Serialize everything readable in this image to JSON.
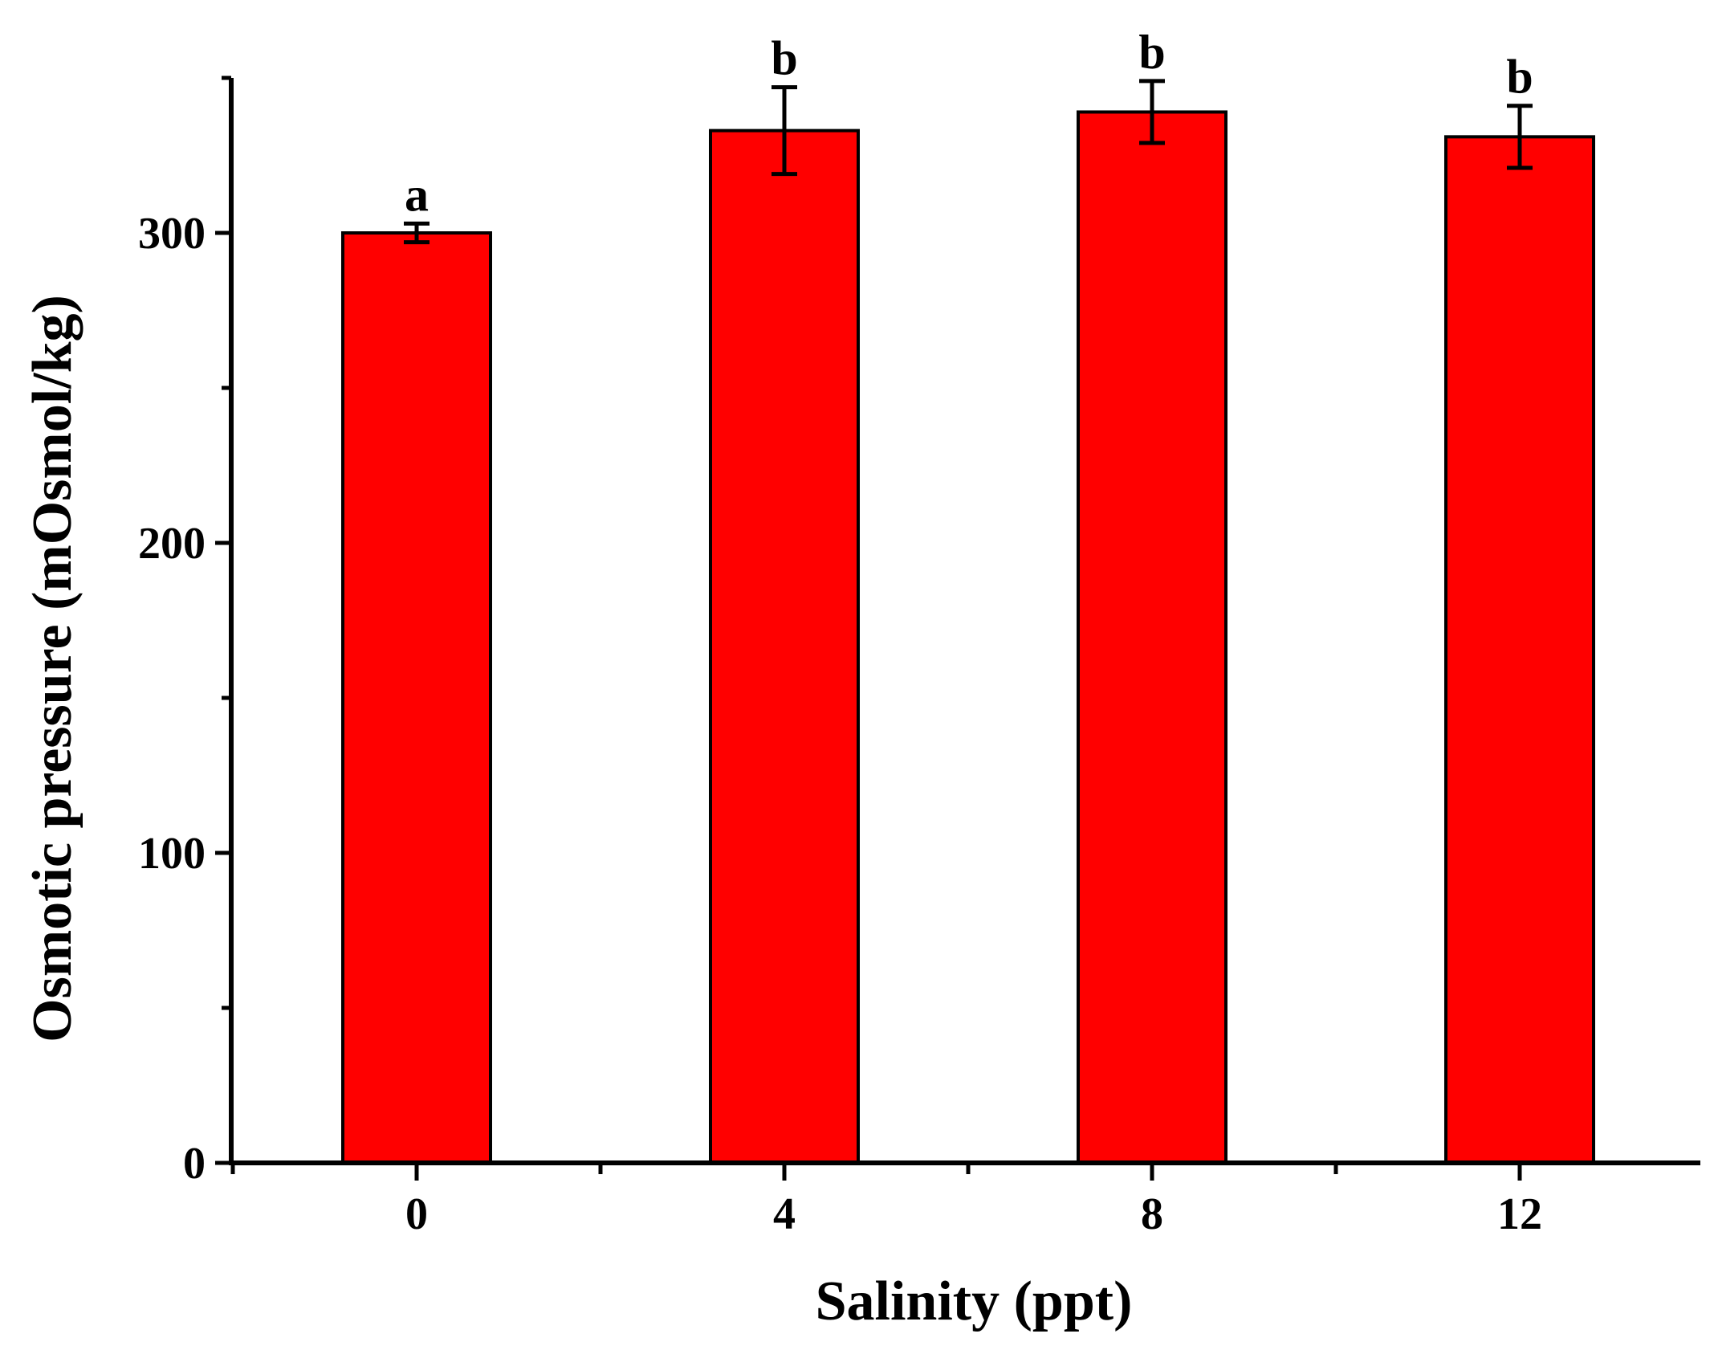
{
  "chart_data": {
    "type": "bar",
    "categories": [
      "0",
      "4",
      "8",
      "12"
    ],
    "series": [
      {
        "values": [
          300,
          333,
          339,
          331
        ],
        "errors": [
          3,
          14,
          10,
          10
        ],
        "labels": [
          "a",
          "b",
          "b",
          "b"
        ],
        "color": "#ff0000"
      }
    ],
    "xlabel": "Salinity (ppt)",
    "ylabel": "Osmotic pressure (mOsmol/kg)",
    "ylim": [
      0,
      350
    ],
    "yticks": [
      "0",
      "100",
      "200",
      "300"
    ],
    "ytick_values": [
      0,
      100,
      200,
      300
    ],
    "y_minor_step": 50,
    "grid": false,
    "legend": "none"
  }
}
